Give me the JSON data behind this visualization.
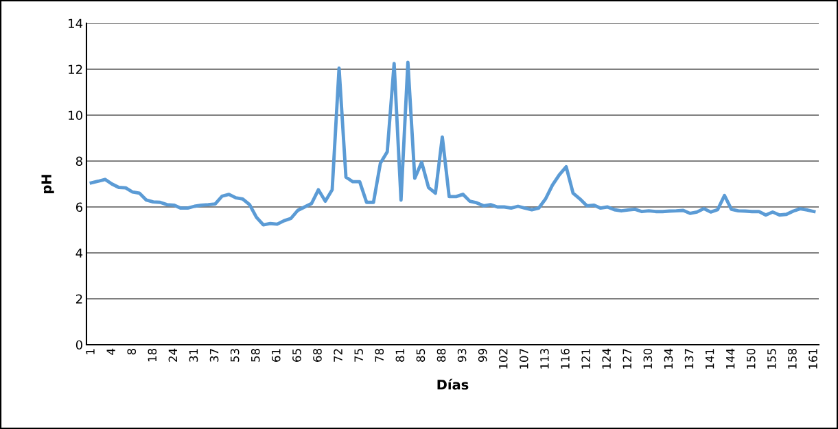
{
  "chart_data": {
    "type": "line",
    "xlabel": "Días",
    "ylabel": "pH",
    "categories": [
      "1",
      null,
      null,
      "4",
      null,
      null,
      "8",
      null,
      null,
      "18",
      null,
      null,
      "24",
      null,
      null,
      "31",
      null,
      null,
      "37",
      null,
      null,
      "53",
      null,
      null,
      "58",
      null,
      null,
      "61",
      null,
      null,
      "65",
      null,
      null,
      "68",
      null,
      null,
      "72",
      null,
      null,
      "75",
      null,
      null,
      "78",
      null,
      null,
      "81",
      null,
      null,
      "85",
      null,
      null,
      "88",
      null,
      null,
      "93",
      null,
      null,
      "99",
      null,
      null,
      "102",
      null,
      null,
      "107",
      null,
      null,
      "113",
      null,
      null,
      "116",
      null,
      null,
      "121",
      null,
      null,
      "124",
      null,
      null,
      "127",
      null,
      null,
      "130",
      null,
      null,
      "134",
      null,
      null,
      "137",
      null,
      null,
      "141",
      null,
      null,
      "144",
      null,
      null,
      "150",
      null,
      null,
      "155",
      null,
      null,
      "158",
      null,
      null,
      "161"
    ],
    "series": [
      {
        "color": "#5b9bd5",
        "values": [
          7.05,
          7.12,
          7.2,
          7.0,
          6.85,
          6.83,
          6.65,
          6.6,
          6.3,
          6.22,
          6.2,
          6.1,
          6.08,
          5.95,
          5.95,
          6.03,
          6.08,
          6.1,
          6.13,
          6.47,
          6.55,
          6.4,
          6.35,
          6.1,
          5.55,
          5.22,
          5.28,
          5.25,
          5.4,
          5.5,
          5.85,
          6.0,
          6.15,
          6.75,
          6.25,
          6.75,
          12.05,
          7.3,
          7.1,
          7.1,
          6.2,
          6.2,
          7.9,
          8.4,
          12.25,
          6.3,
          12.3,
          7.25,
          7.95,
          6.85,
          6.6,
          9.05,
          6.45,
          6.45,
          6.55,
          6.25,
          6.18,
          6.05,
          6.1,
          6.0,
          6.0,
          5.95,
          6.03,
          5.95,
          5.88,
          5.95,
          6.35,
          6.95,
          7.4,
          7.75,
          6.6,
          6.35,
          6.05,
          6.08,
          5.95,
          6.0,
          5.88,
          5.83,
          5.87,
          5.9,
          5.8,
          5.83,
          5.8,
          5.8,
          5.82,
          5.83,
          5.85,
          5.72,
          5.78,
          5.93,
          5.78,
          5.88,
          6.5,
          5.9,
          5.83,
          5.82,
          5.8,
          5.8,
          5.65,
          5.78,
          5.65,
          5.68,
          5.82,
          5.92,
          5.87,
          5.8
        ]
      }
    ],
    "ylim": [
      0,
      14
    ],
    "yticks": [
      0,
      2,
      4,
      6,
      8,
      10,
      12,
      14
    ],
    "grid": "y",
    "marker": "none",
    "line_style": "solid"
  }
}
